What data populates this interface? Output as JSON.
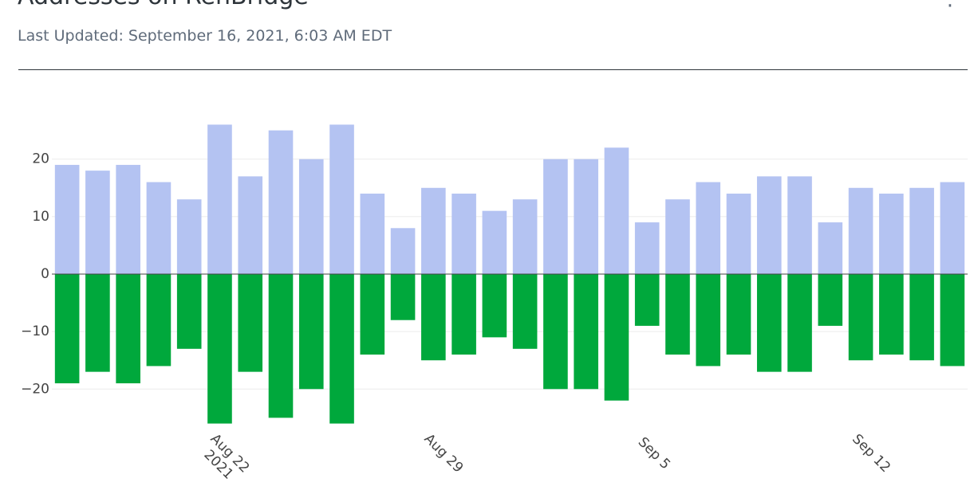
{
  "chart_data": {
    "type": "bar",
    "title": "Addresses on RenBridge",
    "subtitle": "Last Updated: September 16, 2021, 6:03 AM EDT",
    "x": [
      "2021-08-17",
      "2021-08-18",
      "2021-08-19",
      "2021-08-20",
      "2021-08-21",
      "2021-08-22",
      "2021-08-23",
      "2021-08-24",
      "2021-08-25",
      "2021-08-26",
      "2021-08-27",
      "2021-08-28",
      "2021-08-29",
      "2021-08-30",
      "2021-08-31",
      "2021-09-01",
      "2021-09-02",
      "2021-09-03",
      "2021-09-04",
      "2021-09-05",
      "2021-09-06",
      "2021-09-07",
      "2021-09-08",
      "2021-09-09",
      "2021-09-10",
      "2021-09-11",
      "2021-09-12",
      "2021-09-13",
      "2021-09-14",
      "2021-09-15"
    ],
    "series": [
      {
        "color": "#b4c3f2",
        "values": [
          19,
          18,
          19,
          16,
          13,
          26,
          17,
          25,
          20,
          26,
          14,
          8,
          15,
          14,
          11,
          13,
          20,
          20,
          22,
          9,
          13,
          16,
          14,
          17,
          17,
          9,
          15,
          14,
          15,
          16
        ]
      },
      {
        "color": "#00a83c",
        "values": [
          -19,
          -17,
          -19,
          -16,
          -13,
          -26,
          -17,
          -25,
          -20,
          -26,
          -14,
          -8,
          -15,
          -14,
          -11,
          -13,
          -20,
          -20,
          -22,
          -9,
          -14,
          -16,
          -14,
          -17,
          -17,
          -9,
          -15,
          -14,
          -15,
          -16
        ]
      }
    ],
    "xlim": [
      "2021-08-16T12:00:00Z",
      "2021-09-15T12:00:00Z"
    ],
    "xticks": [
      {
        "value": "2021-08-22",
        "label": "Aug 22\n2021"
      },
      {
        "value": "2021-08-29",
        "label": "Aug 29"
      },
      {
        "value": "2021-09-05",
        "label": "Sep 5"
      },
      {
        "value": "2021-09-12",
        "label": "Sep 12"
      }
    ],
    "ylim": [
      -28,
      28
    ],
    "yticks": [
      {
        "value": -20,
        "label": "−20"
      },
      {
        "value": -10,
        "label": "−10"
      },
      0,
      10,
      20
    ],
    "grid": true
  }
}
